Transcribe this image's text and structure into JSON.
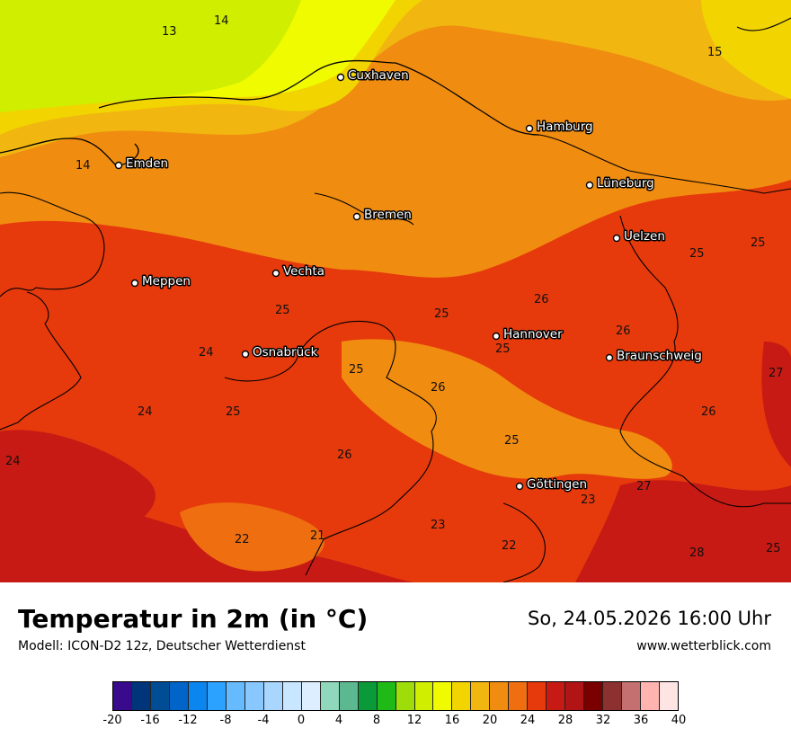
{
  "title": "Temperatur in 2m (in °C)",
  "subtitle": "Modell: ICON-D2 12z, Deutscher Wetterdienst",
  "datetime": "So, 24.05.2026 16:00 Uhr",
  "website": "www.wetterblick.com",
  "legend": {
    "colors": [
      "#3a0a8c",
      "#00357a",
      "#004d95",
      "#0064c8",
      "#0a86ee",
      "#2ba2ff",
      "#66bbff",
      "#88c8ff",
      "#a8d6ff",
      "#c8e6ff",
      "#dceeff",
      "#8fd8bb",
      "#5cb890",
      "#0b9a3a",
      "#1fba18",
      "#9edc0a",
      "#cfee00",
      "#f1fb00",
      "#f2d400",
      "#f1b610",
      "#f08c10",
      "#ee6e10",
      "#e63a0c",
      "#c81a14",
      "#b01414",
      "#7a0000",
      "#8c3030",
      "#c47070",
      "#ffb4b0",
      "#ffe4e4"
    ],
    "ticks": [
      "-20",
      "-16",
      "-12",
      "-8",
      "-4",
      "0",
      "4",
      "8",
      "12",
      "16",
      "20",
      "24",
      "28",
      "32",
      "36",
      "40"
    ]
  },
  "cities": [
    {
      "name": "Cuxhaven"
    },
    {
      "name": "Hamburg"
    },
    {
      "name": "Emden"
    },
    {
      "name": "Lüneburg"
    },
    {
      "name": "Bremen"
    },
    {
      "name": "Uelzen"
    },
    {
      "name": "Vechta"
    },
    {
      "name": "Meppen"
    },
    {
      "name": "Hannover"
    },
    {
      "name": "Osnabrück"
    },
    {
      "name": "Braunschweig"
    },
    {
      "name": "Göttingen"
    }
  ],
  "isolabels": [
    "13",
    "14",
    "15",
    "14",
    "25",
    "25",
    "26",
    "25",
    "26",
    "25",
    "24",
    "25",
    "27",
    "24",
    "25",
    "25",
    "26",
    "26",
    "25",
    "24",
    "26",
    "27",
    "23",
    "22",
    "21",
    "23",
    "22",
    "28",
    "25"
  ]
}
